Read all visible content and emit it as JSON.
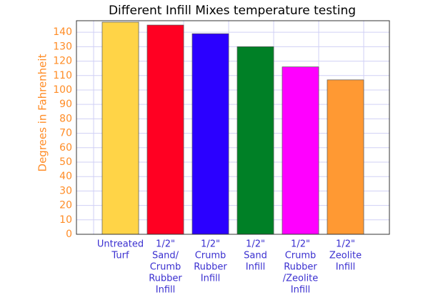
{
  "chart_data": {
    "type": "bar",
    "title": "Different Infill Mixes temperature testing",
    "y_label": "Degrees in Fahrenheit",
    "categories": [
      [
        "Untreated",
        "Turf"
      ],
      [
        "1/2\"",
        "Sand/",
        "Crumb",
        "Rubber",
        "Infill"
      ],
      [
        "1/2\"",
        "Crumb",
        "Rubber",
        "Infill"
      ],
      [
        "1/2\"",
        "Sand",
        "Infill"
      ],
      [
        "1/2\"",
        "Crumb",
        "Rubber",
        "/Zeolite",
        "Infill"
      ],
      [
        "1/2\"",
        "Zeolite",
        "Infill"
      ]
    ],
    "values": [
      147,
      145,
      139,
      130,
      116,
      107
    ],
    "colors": [
      "#ffd447",
      "#ff0022",
      "#2b00ff",
      "#008026",
      "#ff00ff",
      "#ff9933"
    ],
    "ylim": [
      0,
      148
    ],
    "yticks": [
      0,
      10,
      20,
      30,
      40,
      50,
      60,
      70,
      80,
      90,
      100,
      110,
      120,
      130,
      140
    ],
    "grid": true
  }
}
